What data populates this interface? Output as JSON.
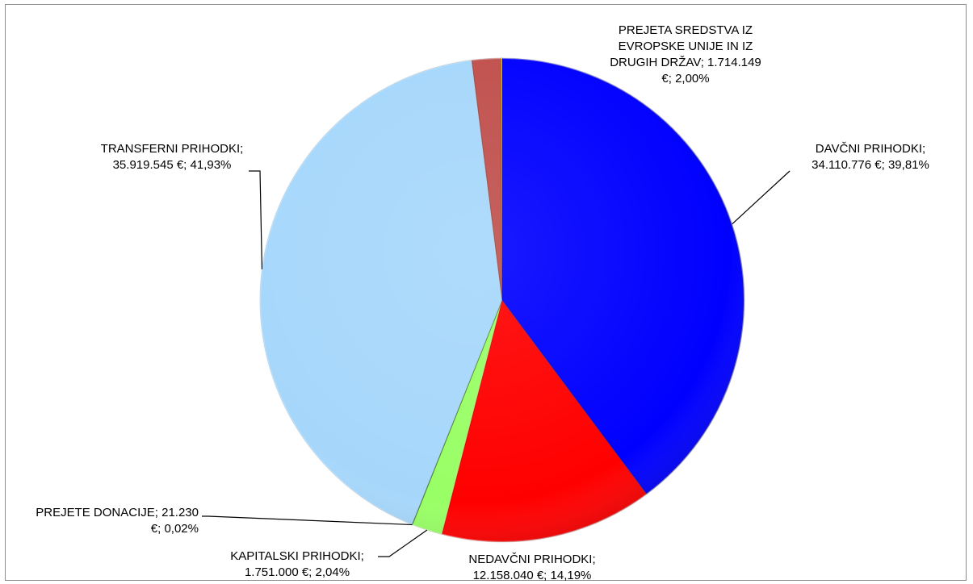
{
  "chart_data": {
    "type": "pie",
    "title": "",
    "slices": [
      {
        "key": "davcni",
        "label_lines": [
          "DAVČNI PRIHODKI;",
          "34.110.776 €; 39,81%"
        ],
        "value": 34110776,
        "percent": 39.81,
        "color": "#0000ff"
      },
      {
        "key": "nedavcni",
        "label_lines": [
          "NEDAVČNI PRIHODKI;",
          "12.158.040 €; 14,19%"
        ],
        "value": 12158040,
        "percent": 14.19,
        "color": "#ff0000"
      },
      {
        "key": "kapitalski",
        "label_lines": [
          "KAPITALSKI PRIHODKI;",
          "1.751.000 €; 2,04%"
        ],
        "value": 1751000,
        "percent": 2.04,
        "color": "#99ff66"
      },
      {
        "key": "donacije",
        "label_lines": [
          "PREJETE DONACIJE; 21.230",
          "€; 0,02%"
        ],
        "value": 21230,
        "percent": 0.02,
        "color": "#9999ff"
      },
      {
        "key": "transferni",
        "label_lines": [
          "TRANSFERNI PRIHODKI;",
          "35.919.545 €; 41,93%"
        ],
        "value": 35919545,
        "percent": 41.93,
        "color": "#a6d7fb"
      },
      {
        "key": "eu",
        "label_lines": [
          "PREJETA SREDSTVA IZ",
          "EVROPSKE UNIJE IN IZ",
          "DRUGIH DRŽAV; 1.714.149",
          "€; 2,00%"
        ],
        "value": 1714149,
        "percent": 2.0,
        "color": "#c0504d"
      }
    ],
    "other_slice": {
      "color": "#ffc000"
    },
    "legend": "none"
  }
}
